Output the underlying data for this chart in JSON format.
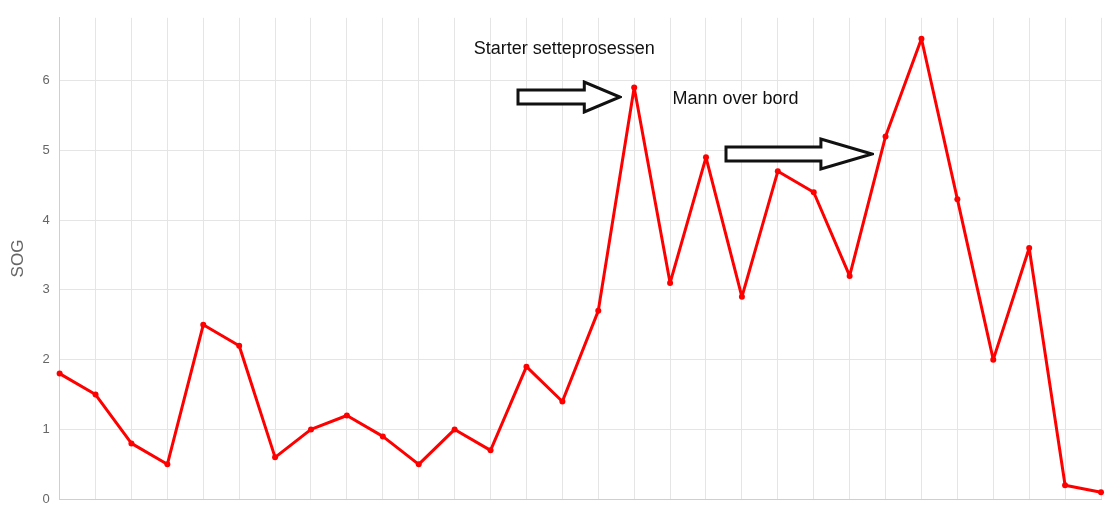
{
  "chart_data": {
    "type": "line",
    "ylabel": "SOG",
    "categories": [
      null,
      null,
      null,
      null,
      null,
      null,
      null,
      null,
      null,
      null,
      null,
      null,
      null,
      null,
      null,
      null,
      null,
      null,
      null,
      null,
      null,
      null,
      null,
      null,
      null,
      null,
      null,
      null,
      null,
      null
    ],
    "series": [
      {
        "color": "#ff0000",
        "values": [
          1.8,
          1.5,
          0.8,
          0.5,
          2.5,
          2.2,
          0.6,
          1.0,
          1.2,
          0.9,
          0.5,
          1.0,
          0.7,
          1.9,
          1.4,
          2.7,
          5.9,
          3.1,
          4.9,
          2.9,
          4.7,
          4.4,
          3.2,
          5.2,
          6.6,
          4.3,
          2.0,
          3.6,
          0.2,
          0.1
        ]
      }
    ],
    "ylim": [
      0,
      6.9
    ],
    "yticks": [
      0,
      1,
      2,
      3,
      4,
      5,
      6
    ],
    "tick_labels": "y",
    "grid": true,
    "marker": "circle",
    "line_style": "solid",
    "annotations": [
      "Starter setteprosessen",
      "Mann over bord"
    ]
  }
}
